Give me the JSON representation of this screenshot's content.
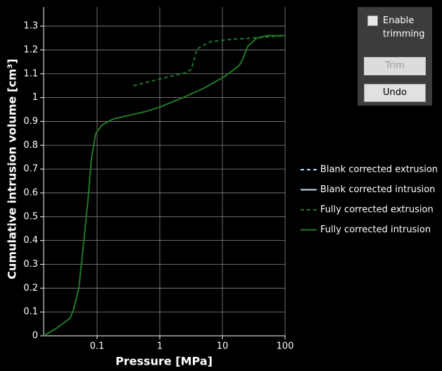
{
  "chart_data": {
    "type": "line",
    "log_x": true,
    "grid": true,
    "x_label": "Pressure [MPa]",
    "y_label": "Cumulative intrusion volume [cm³]",
    "xlim": [
      0.014,
      100
    ],
    "ylim": [
      0,
      1.38
    ],
    "xticks": [
      0.1,
      1,
      10,
      100
    ],
    "yticks": [
      0,
      0.1,
      0.2,
      0.3,
      0.4,
      0.5,
      0.6,
      0.7,
      0.8,
      0.9,
      1,
      1.1,
      1.2,
      1.3
    ],
    "legend": "right",
    "series": [
      {
        "name": "Blank corrected extrusion",
        "color": "#c6e2f7",
        "style": "dashed",
        "x": [],
        "values": []
      },
      {
        "name": "Blank corrected intrusion",
        "color": "#c6e2f7",
        "style": "solid",
        "x": [],
        "values": []
      },
      {
        "name": "Fully corrected extrusion",
        "color": "#1f7a24",
        "style": "dashed",
        "x": [
          0.38,
          1.08,
          2.67,
          3.2,
          3.94,
          6.6,
          14.3,
          31,
          100
        ],
        "values": [
          1.05,
          1.08,
          1.105,
          1.12,
          1.205,
          1.235,
          1.245,
          1.25,
          1.26
        ]
      },
      {
        "name": "Fully corrected intrusion",
        "color": "#1f7a24",
        "style": "solid",
        "x": [
          0.014,
          0.022,
          0.037,
          0.042,
          0.051,
          0.06,
          0.072,
          0.081,
          0.095,
          0.12,
          0.18,
          0.38,
          0.57,
          1,
          2.35,
          5.1,
          11.1,
          18.6,
          21,
          25.4,
          35.5,
          52,
          100
        ],
        "values": [
          0,
          0.03,
          0.074,
          0.11,
          0.2,
          0.375,
          0.58,
          0.745,
          0.85,
          0.885,
          0.91,
          0.93,
          0.94,
          0.96,
          1.0,
          1.04,
          1.09,
          1.135,
          1.16,
          1.215,
          1.25,
          1.26,
          1.26
        ]
      }
    ]
  },
  "controls": {
    "checkbox_label": "Enable trimming",
    "buttons": [
      "Trim",
      "Undo"
    ]
  }
}
